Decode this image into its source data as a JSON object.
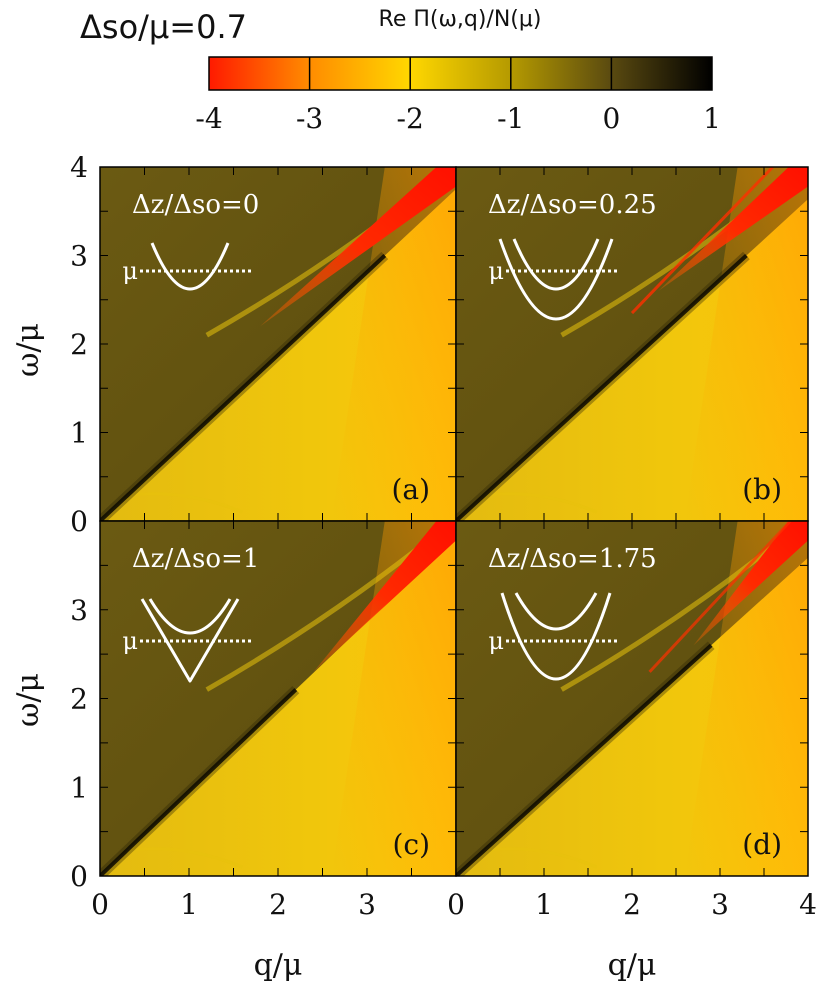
{
  "figure_title": "Δso/μ=0.7",
  "colorbar": {
    "label": "Re Π(ω,q)/N(μ)",
    "ticks": [
      "-4",
      "-3",
      "-2",
      "-1",
      "0",
      "1"
    ],
    "range": [
      -4,
      1
    ],
    "colors": [
      "#ff1a00",
      "#ff8c00",
      "#ffd700",
      "#b59a00",
      "#5a4a10",
      "#000000"
    ]
  },
  "axes": {
    "xlabel": "q/μ",
    "ylabel": "ω/μ",
    "x_ticks_left": [
      "0",
      "1",
      "2",
      "3"
    ],
    "x_ticks_right": [
      "0",
      "1",
      "2",
      "3",
      "4"
    ],
    "y_ticks_top": [
      "0",
      "1",
      "2",
      "3",
      "4"
    ],
    "y_ticks_bottom": [
      "0",
      "1",
      "2",
      "3"
    ]
  },
  "chart_data": [
    {
      "type": "heatmap",
      "panel": "(a)",
      "label": "Δz/Δso=0",
      "ratio": 0,
      "xlim": [
        0,
        4
      ],
      "ylim": [
        0,
        4
      ],
      "fermi_label": "μ",
      "red_band": {
        "q": [
          1.8,
          4.0
        ],
        "omega": [
          2.2,
          4.0
        ]
      },
      "dark_line": {
        "q": [
          0,
          3.2
        ],
        "omega": [
          0,
          3.0
        ]
      }
    },
    {
      "type": "heatmap",
      "panel": "(b)",
      "label": "Δz/Δso=0.25",
      "ratio": 0.25,
      "xlim": [
        0,
        4
      ],
      "ylim": [
        0,
        4
      ],
      "fermi_label": "μ",
      "red_band": {
        "q": [
          2.3,
          4.0
        ],
        "omega": [
          2.6,
          4.0
        ]
      },
      "dark_line": {
        "q": [
          0,
          3.3
        ],
        "omega": [
          0,
          3.0
        ]
      }
    },
    {
      "type": "heatmap",
      "panel": "(c)",
      "label": "Δz/Δso=1",
      "ratio": 1,
      "xlim": [
        0,
        4
      ],
      "ylim": [
        0,
        4
      ],
      "fermi_label": "μ",
      "red_band": {
        "q": [
          2.4,
          4.0
        ],
        "omega": [
          2.3,
          4.0
        ]
      },
      "dark_line": {
        "q": [
          0,
          2.2
        ],
        "omega": [
          0,
          2.1
        ]
      }
    },
    {
      "type": "heatmap",
      "panel": "(d)",
      "label": "Δz/Δso=1.75",
      "ratio": 1.75,
      "xlim": [
        0,
        4
      ],
      "ylim": [
        0,
        4
      ],
      "fermi_label": "μ",
      "red_band": {
        "q": [
          2.7,
          4.0
        ],
        "omega": [
          2.6,
          4.0
        ]
      },
      "dark_line": {
        "q": [
          0,
          2.9
        ],
        "omega": [
          0,
          2.6
        ]
      }
    }
  ]
}
